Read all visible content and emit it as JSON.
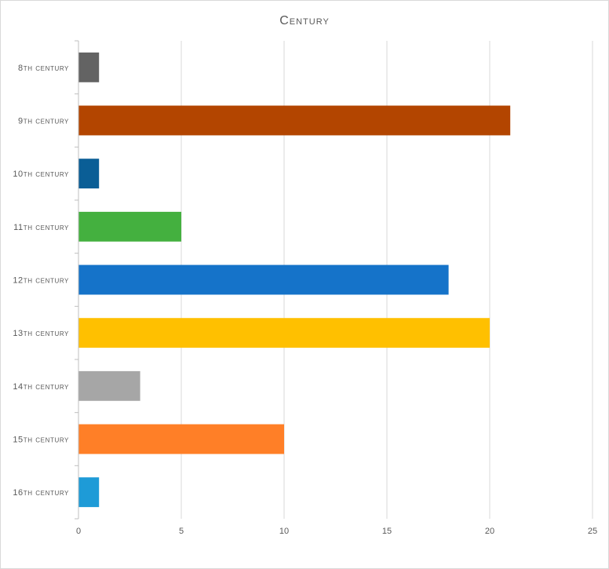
{
  "chart_data": {
    "type": "bar",
    "orientation": "horizontal",
    "title": "Century",
    "xlabel": "",
    "ylabel": "",
    "categories": [
      "8th century",
      "9th century",
      "10th century",
      "11th century",
      "12th century",
      "13th century",
      "14th century",
      "15th century",
      "16th century"
    ],
    "values": [
      1,
      21,
      1,
      5,
      18,
      20,
      3,
      10,
      1
    ],
    "colors": [
      "#636363",
      "#b34500",
      "#0a5e96",
      "#44b03f",
      "#1573c9",
      "#ffc000",
      "#a6a6a6",
      "#ff7f27",
      "#1e9bd7"
    ],
    "xlim": [
      0,
      25
    ],
    "xticks": [
      0,
      5,
      10,
      15,
      20,
      25
    ],
    "grid": true,
    "legend": "none"
  }
}
